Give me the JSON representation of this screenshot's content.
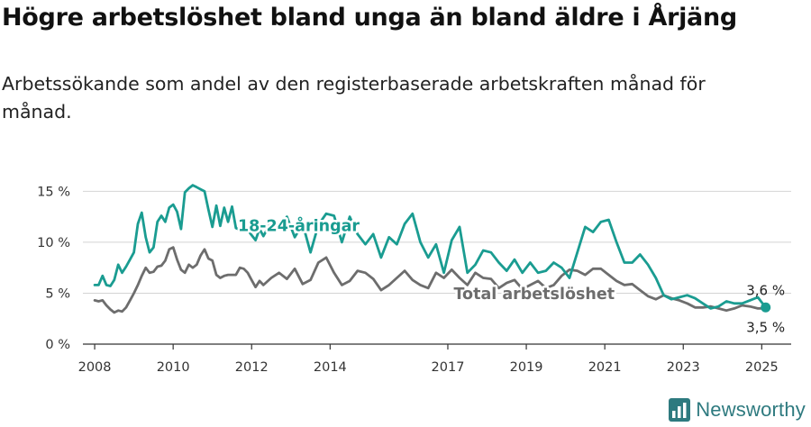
{
  "title": "Högre arbetslöshet bland unga än bland äldre i Årjäng",
  "subtitle": "Arbetssökande som andel av den registerbaserade arbetskraften månad för månad.",
  "brand": {
    "name": "Newsworthy",
    "icon": "newsworthy-logo-icon"
  },
  "colors": {
    "youth": "#1a9c91",
    "total": "#6d6d6d",
    "grid": "#d4d4d4",
    "axis": "#333333"
  },
  "chart_data": {
    "type": "line",
    "ylim": [
      0,
      16.8
    ],
    "xlim": [
      2007.7,
      2025.75
    ],
    "yticks": [
      0,
      5,
      10,
      15
    ],
    "ytick_labels": [
      "0 %",
      "5 %",
      "10 %",
      "15 %"
    ],
    "xticks": [
      2008,
      2010,
      2012,
      2014,
      2017,
      2019,
      2021,
      2023,
      2025
    ],
    "xtick_labels": [
      "2008",
      "2010",
      "2012",
      "2014",
      "2017",
      "2019",
      "2021",
      "2023",
      "2025"
    ],
    "series": [
      {
        "name": "18-24-åringar",
        "color": "#1a9c91",
        "end_label": "3,6 %",
        "x": [
          2008.0,
          2008.1,
          2008.2,
          2008.3,
          2008.4,
          2008.5,
          2008.6,
          2008.7,
          2008.8,
          2008.9,
          2009.0,
          2009.1,
          2009.2,
          2009.3,
          2009.4,
          2009.5,
          2009.6,
          2009.7,
          2009.8,
          2009.9,
          2010.0,
          2010.1,
          2010.2,
          2010.3,
          2010.4,
          2010.5,
          2010.6,
          2010.7,
          2010.8,
          2010.9,
          2011.0,
          2011.1,
          2011.2,
          2011.3,
          2011.4,
          2011.5,
          2011.6,
          2011.7,
          2011.8,
          2011.9,
          2012.0,
          2012.1,
          2012.2,
          2012.3,
          2012.5,
          2012.7,
          2012.9,
          2013.1,
          2013.3,
          2013.5,
          2013.7,
          2013.9,
          2014.1,
          2014.3,
          2014.5,
          2014.7,
          2014.9,
          2015.1,
          2015.3,
          2015.5,
          2015.7,
          2015.9,
          2016.1,
          2016.3,
          2016.5,
          2016.7,
          2016.9,
          2017.1,
          2017.3,
          2017.5,
          2017.7,
          2017.9,
          2018.1,
          2018.3,
          2018.5,
          2018.7,
          2018.9,
          2019.1,
          2019.3,
          2019.5,
          2019.7,
          2019.9,
          2020.1,
          2020.3,
          2020.5,
          2020.7,
          2020.9,
          2021.1,
          2021.3,
          2021.5,
          2021.7,
          2021.9,
          2022.1,
          2022.3,
          2022.5,
          2022.7,
          2022.9,
          2023.1,
          2023.3,
          2023.5,
          2023.7,
          2023.9,
          2024.1,
          2024.3,
          2024.5,
          2024.7,
          2024.9,
          2025.1
        ],
        "values": [
          5.8,
          5.8,
          6.7,
          5.8,
          5.7,
          6.3,
          7.8,
          7.0,
          7.6,
          8.3,
          9.0,
          11.8,
          12.9,
          10.5,
          9.0,
          9.5,
          12.0,
          12.6,
          12.0,
          13.4,
          13.7,
          13.0,
          11.3,
          14.9,
          15.3,
          15.6,
          15.4,
          15.2,
          15.0,
          13.2,
          11.5,
          13.6,
          11.6,
          13.4,
          12.0,
          13.5,
          11.4,
          11.2,
          11.0,
          11.2,
          10.7,
          10.2,
          11.3,
          10.6,
          12.0,
          11.3,
          12.5,
          10.5,
          11.8,
          9.0,
          11.7,
          12.8,
          12.6,
          10.0,
          12.5,
          10.8,
          9.8,
          10.8,
          8.5,
          10.5,
          9.8,
          11.8,
          12.8,
          10.0,
          8.5,
          9.8,
          7.0,
          10.2,
          11.5,
          7.0,
          7.8,
          9.2,
          9.0,
          8.0,
          7.2,
          8.3,
          7.0,
          8.0,
          7.0,
          7.2,
          8.0,
          7.5,
          6.5,
          9.0,
          11.5,
          11.0,
          12.0,
          12.2,
          10.0,
          8.0,
          8.0,
          8.8,
          7.8,
          6.5,
          4.8,
          4.4,
          4.6,
          4.8,
          4.5,
          4.0,
          3.5,
          3.7,
          4.2,
          4.0,
          4.0,
          4.3,
          4.6,
          3.6
        ]
      },
      {
        "name": "Total arbetslöshet",
        "color": "#6d6d6d",
        "end_label": "3,5 %",
        "x": [
          2008.0,
          2008.1,
          2008.2,
          2008.3,
          2008.4,
          2008.5,
          2008.6,
          2008.7,
          2008.8,
          2008.9,
          2009.0,
          2009.1,
          2009.2,
          2009.3,
          2009.4,
          2009.5,
          2009.6,
          2009.7,
          2009.8,
          2009.9,
          2010.0,
          2010.1,
          2010.2,
          2010.3,
          2010.4,
          2010.5,
          2010.6,
          2010.7,
          2010.8,
          2010.9,
          2011.0,
          2011.1,
          2011.2,
          2011.3,
          2011.4,
          2011.5,
          2011.6,
          2011.7,
          2011.8,
          2011.9,
          2012.0,
          2012.1,
          2012.2,
          2012.3,
          2012.5,
          2012.7,
          2012.9,
          2013.1,
          2013.3,
          2013.5,
          2013.7,
          2013.9,
          2014.1,
          2014.3,
          2014.5,
          2014.7,
          2014.9,
          2015.1,
          2015.3,
          2015.5,
          2015.7,
          2015.9,
          2016.1,
          2016.3,
          2016.5,
          2016.7,
          2016.9,
          2017.1,
          2017.3,
          2017.5,
          2017.7,
          2017.9,
          2018.1,
          2018.3,
          2018.5,
          2018.7,
          2018.9,
          2019.1,
          2019.3,
          2019.5,
          2019.7,
          2019.9,
          2020.1,
          2020.3,
          2020.5,
          2020.7,
          2020.9,
          2021.1,
          2021.3,
          2021.5,
          2021.7,
          2021.9,
          2022.1,
          2022.3,
          2022.5,
          2022.7,
          2022.9,
          2023.1,
          2023.3,
          2023.5,
          2023.7,
          2023.9,
          2024.1,
          2024.3,
          2024.5,
          2024.7,
          2024.9,
          2025.1
        ],
        "values": [
          4.3,
          4.2,
          4.3,
          3.8,
          3.4,
          3.1,
          3.3,
          3.2,
          3.6,
          4.3,
          5.0,
          5.8,
          6.7,
          7.5,
          7.0,
          7.1,
          7.6,
          7.7,
          8.2,
          9.3,
          9.5,
          8.3,
          7.3,
          7.0,
          7.8,
          7.5,
          7.8,
          8.7,
          9.3,
          8.4,
          8.2,
          6.8,
          6.5,
          6.7,
          6.8,
          6.8,
          6.8,
          7.5,
          7.4,
          7.0,
          6.3,
          5.6,
          6.2,
          5.8,
          6.5,
          7.0,
          6.4,
          7.4,
          5.9,
          6.3,
          8.0,
          8.5,
          7.0,
          5.8,
          6.2,
          7.2,
          7.0,
          6.4,
          5.3,
          5.8,
          6.5,
          7.2,
          6.3,
          5.8,
          5.5,
          7.0,
          6.5,
          7.3,
          6.5,
          5.8,
          7.0,
          6.5,
          6.4,
          5.5,
          6.0,
          6.3,
          5.4,
          5.8,
          6.2,
          5.5,
          5.8,
          6.7,
          7.3,
          7.2,
          6.8,
          7.4,
          7.4,
          6.8,
          6.2,
          5.8,
          5.9,
          5.3,
          4.7,
          4.4,
          4.8,
          4.5,
          4.3,
          4.0,
          3.6,
          3.6,
          3.7,
          3.5,
          3.3,
          3.5,
          3.8,
          3.7,
          3.5,
          3.5
        ]
      }
    ]
  }
}
